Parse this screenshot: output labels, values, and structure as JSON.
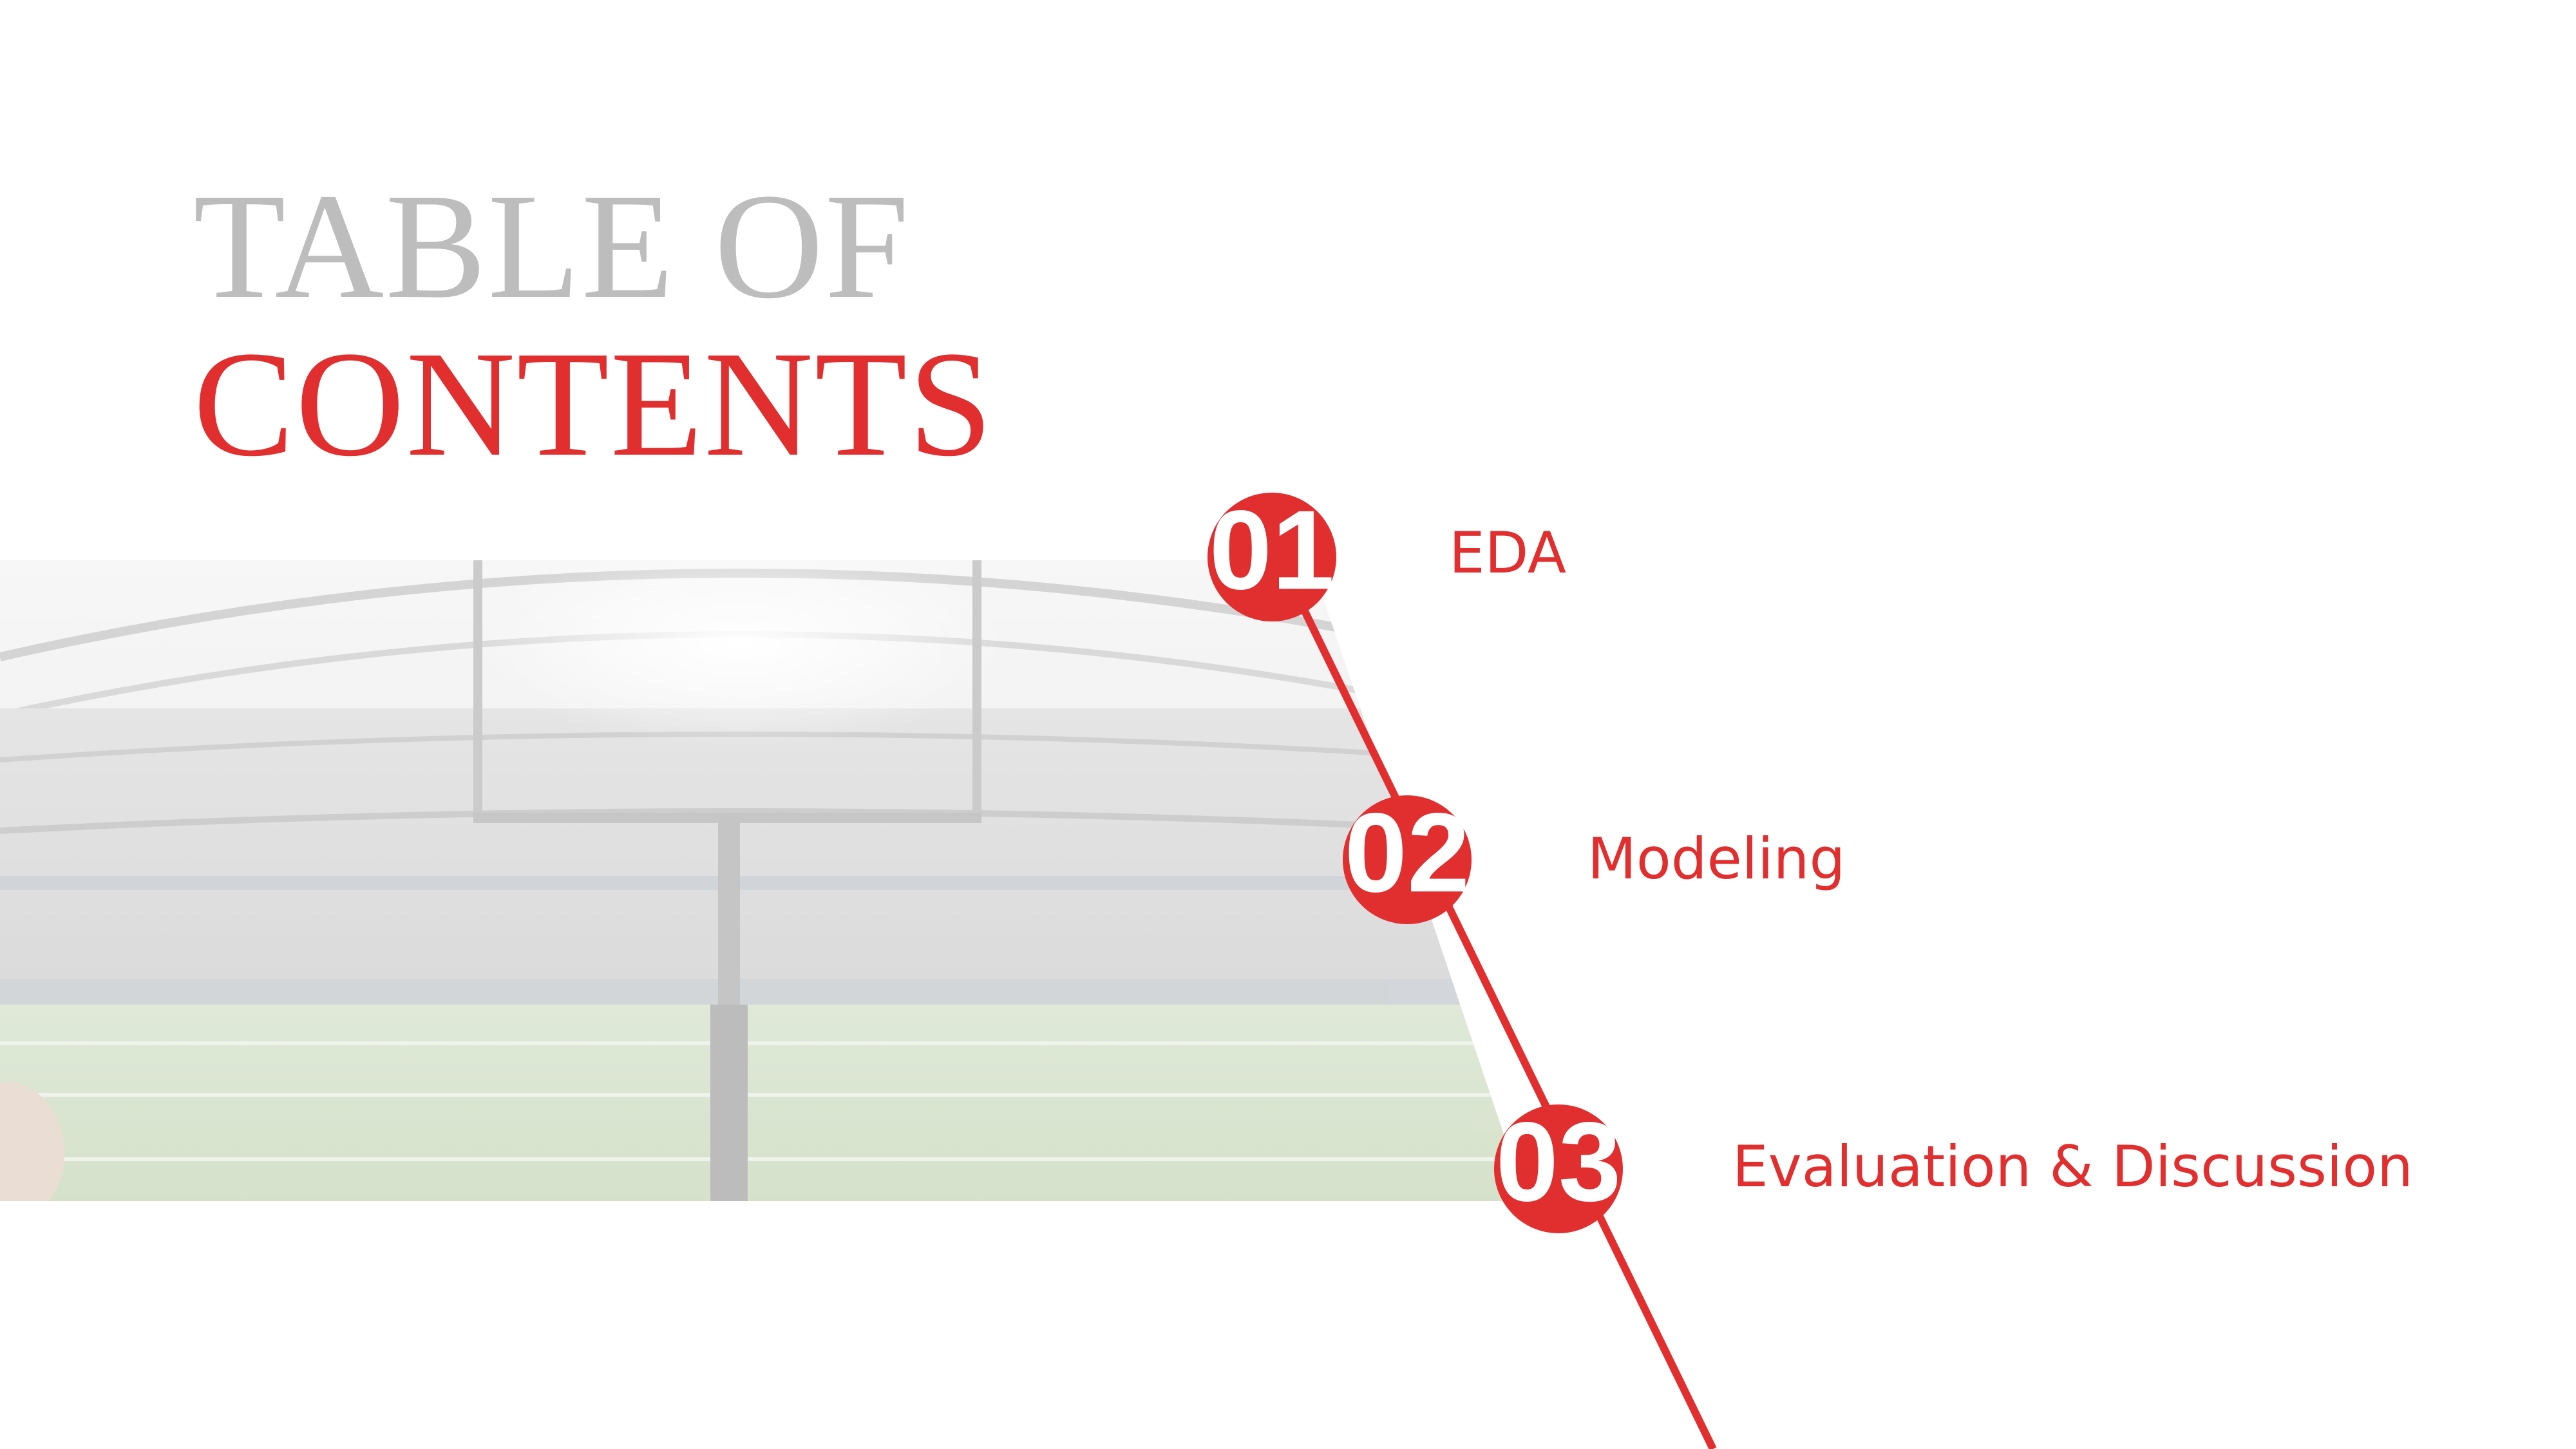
{
  "title": {
    "line1": "TABLE OF",
    "line2": "CONTENTS"
  },
  "items": [
    {
      "number": "01",
      "label": "EDA"
    },
    {
      "number": "02",
      "label": "Modeling"
    },
    {
      "number": "03",
      "label": "Evaluation & Discussion"
    }
  ],
  "colors": {
    "accent": "#e12e2f",
    "title_gray": "#bdbdbd",
    "background": "#ffffff"
  }
}
